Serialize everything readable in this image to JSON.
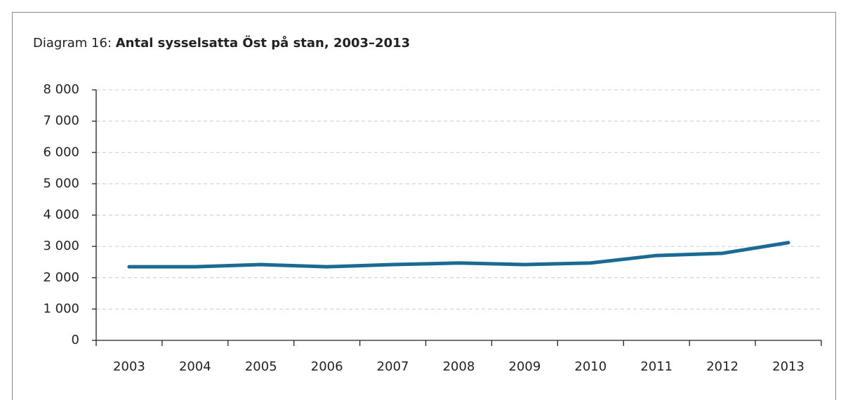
{
  "chart_data": {
    "type": "line",
    "label": "Diagram 16:",
    "title": "Antal sysselsatta Öst på stan, 2003–2013",
    "categories": [
      "2003",
      "2004",
      "2005",
      "2006",
      "2007",
      "2008",
      "2009",
      "2010",
      "2011",
      "2012",
      "2013"
    ],
    "values": [
      2350,
      2350,
      2420,
      2350,
      2420,
      2470,
      2420,
      2470,
      2710,
      2780,
      3120
    ],
    "color": "#1b6a93",
    "ylim": [
      0,
      8000
    ],
    "yticks": [
      0,
      {
        "value": 1000,
        "label": "1 000"
      },
      {
        "value": 2000,
        "label": "2 000"
      },
      {
        "value": 3000,
        "label": "3 000"
      },
      {
        "value": 4000,
        "label": "4 000"
      },
      {
        "value": 5000,
        "label": "5 000"
      },
      {
        "value": 6000,
        "label": "6 000"
      },
      {
        "value": 7000,
        "label": "7 000"
      },
      {
        "value": 8000,
        "label": "8 000"
      }
    ],
    "grid": true
  }
}
